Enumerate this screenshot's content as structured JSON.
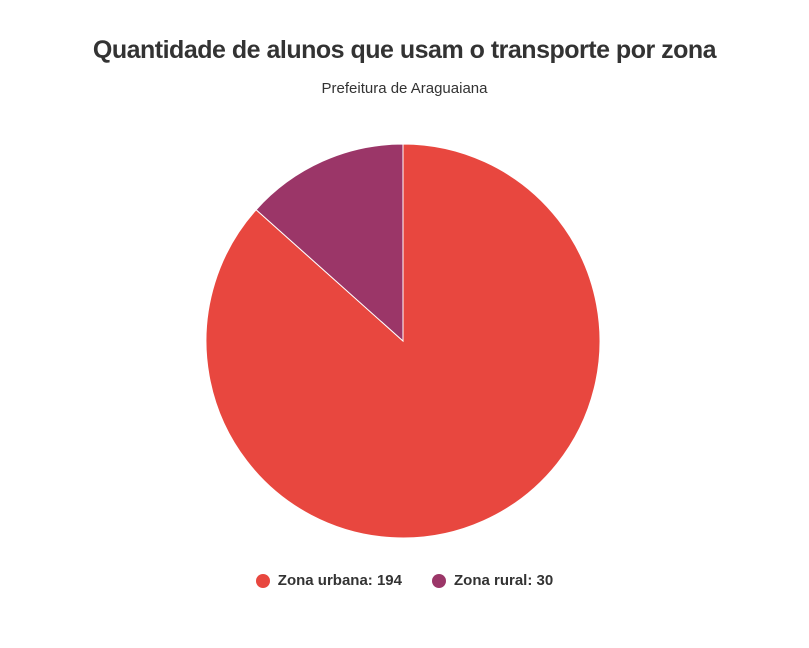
{
  "chart_data": {
    "type": "pie",
    "title": "Quantidade de alunos que usam o transporte por zona",
    "subtitle": "Prefeitura de Araguaiana",
    "legend_position": "bottom",
    "series": [
      {
        "label": "Zona urbana",
        "value": 194,
        "color": "#e8473f",
        "legend_text": "Zona urbana: 194"
      },
      {
        "label": "Zona rural",
        "value": 30,
        "color": "#9b3668",
        "legend_text": "Zona rural: 30"
      }
    ]
  }
}
